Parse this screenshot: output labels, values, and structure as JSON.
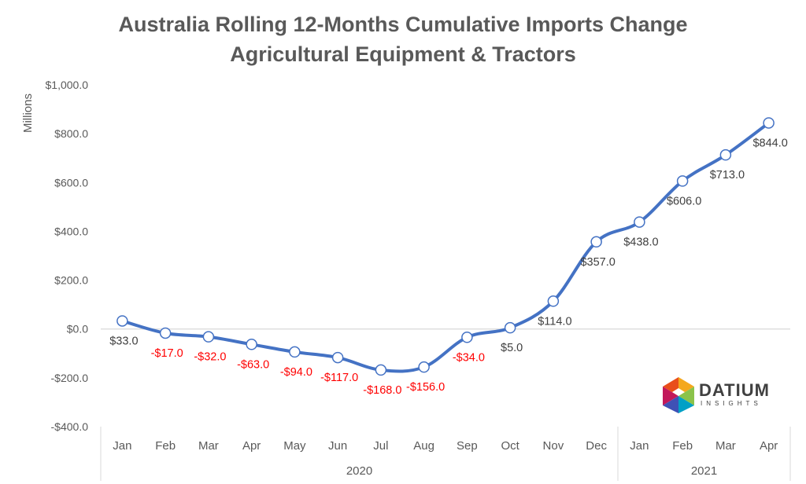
{
  "title_line1": "Australia Rolling 12-Months Cumulative Imports Change",
  "title_line2": "Agricultural Equipment & Tractors",
  "logo": {
    "word": "DATIUM",
    "sub": "INSIGHTS"
  },
  "chart_data": {
    "type": "line",
    "ylabel": "Millions",
    "ylim": [
      -400,
      1000
    ],
    "yticks": [
      -400,
      -200,
      0,
      200,
      400,
      600,
      800,
      1000
    ],
    "ytick_labels": [
      "-$400.0",
      "-$200.0",
      "$0.0",
      "$200.0",
      "$400.0",
      "$600.0",
      "$800.0",
      "$1,000.0"
    ],
    "categories": [
      "Jan",
      "Feb",
      "Mar",
      "Apr",
      "May",
      "Jun",
      "Jul",
      "Aug",
      "Sep",
      "Oct",
      "Nov",
      "Dec",
      "Jan",
      "Feb",
      "Mar",
      "Apr"
    ],
    "year_groups": [
      {
        "label": "2020",
        "count": 12
      },
      {
        "label": "2021",
        "count": 4
      }
    ],
    "series": [
      {
        "values": [
          33,
          -17,
          -32,
          -63,
          -94,
          -117,
          -168,
          -156,
          -34,
          5,
          114,
          357,
          438,
          606,
          713,
          844
        ],
        "labels": [
          "$33.0",
          "-$17.0",
          "-$32.0",
          "-$63.0",
          "-$94.0",
          "-$117.0",
          "-$168.0",
          "-$156.0",
          "-$34.0",
          "$5.0",
          "$114.0",
          "$357.0",
          "$438.0",
          "$606.0",
          "$713.0",
          "$844.0"
        ],
        "color": "#4472C4"
      }
    ],
    "negative_label_color": "#FF0000",
    "positive_label_color": "#404040",
    "gridlines": false
  }
}
